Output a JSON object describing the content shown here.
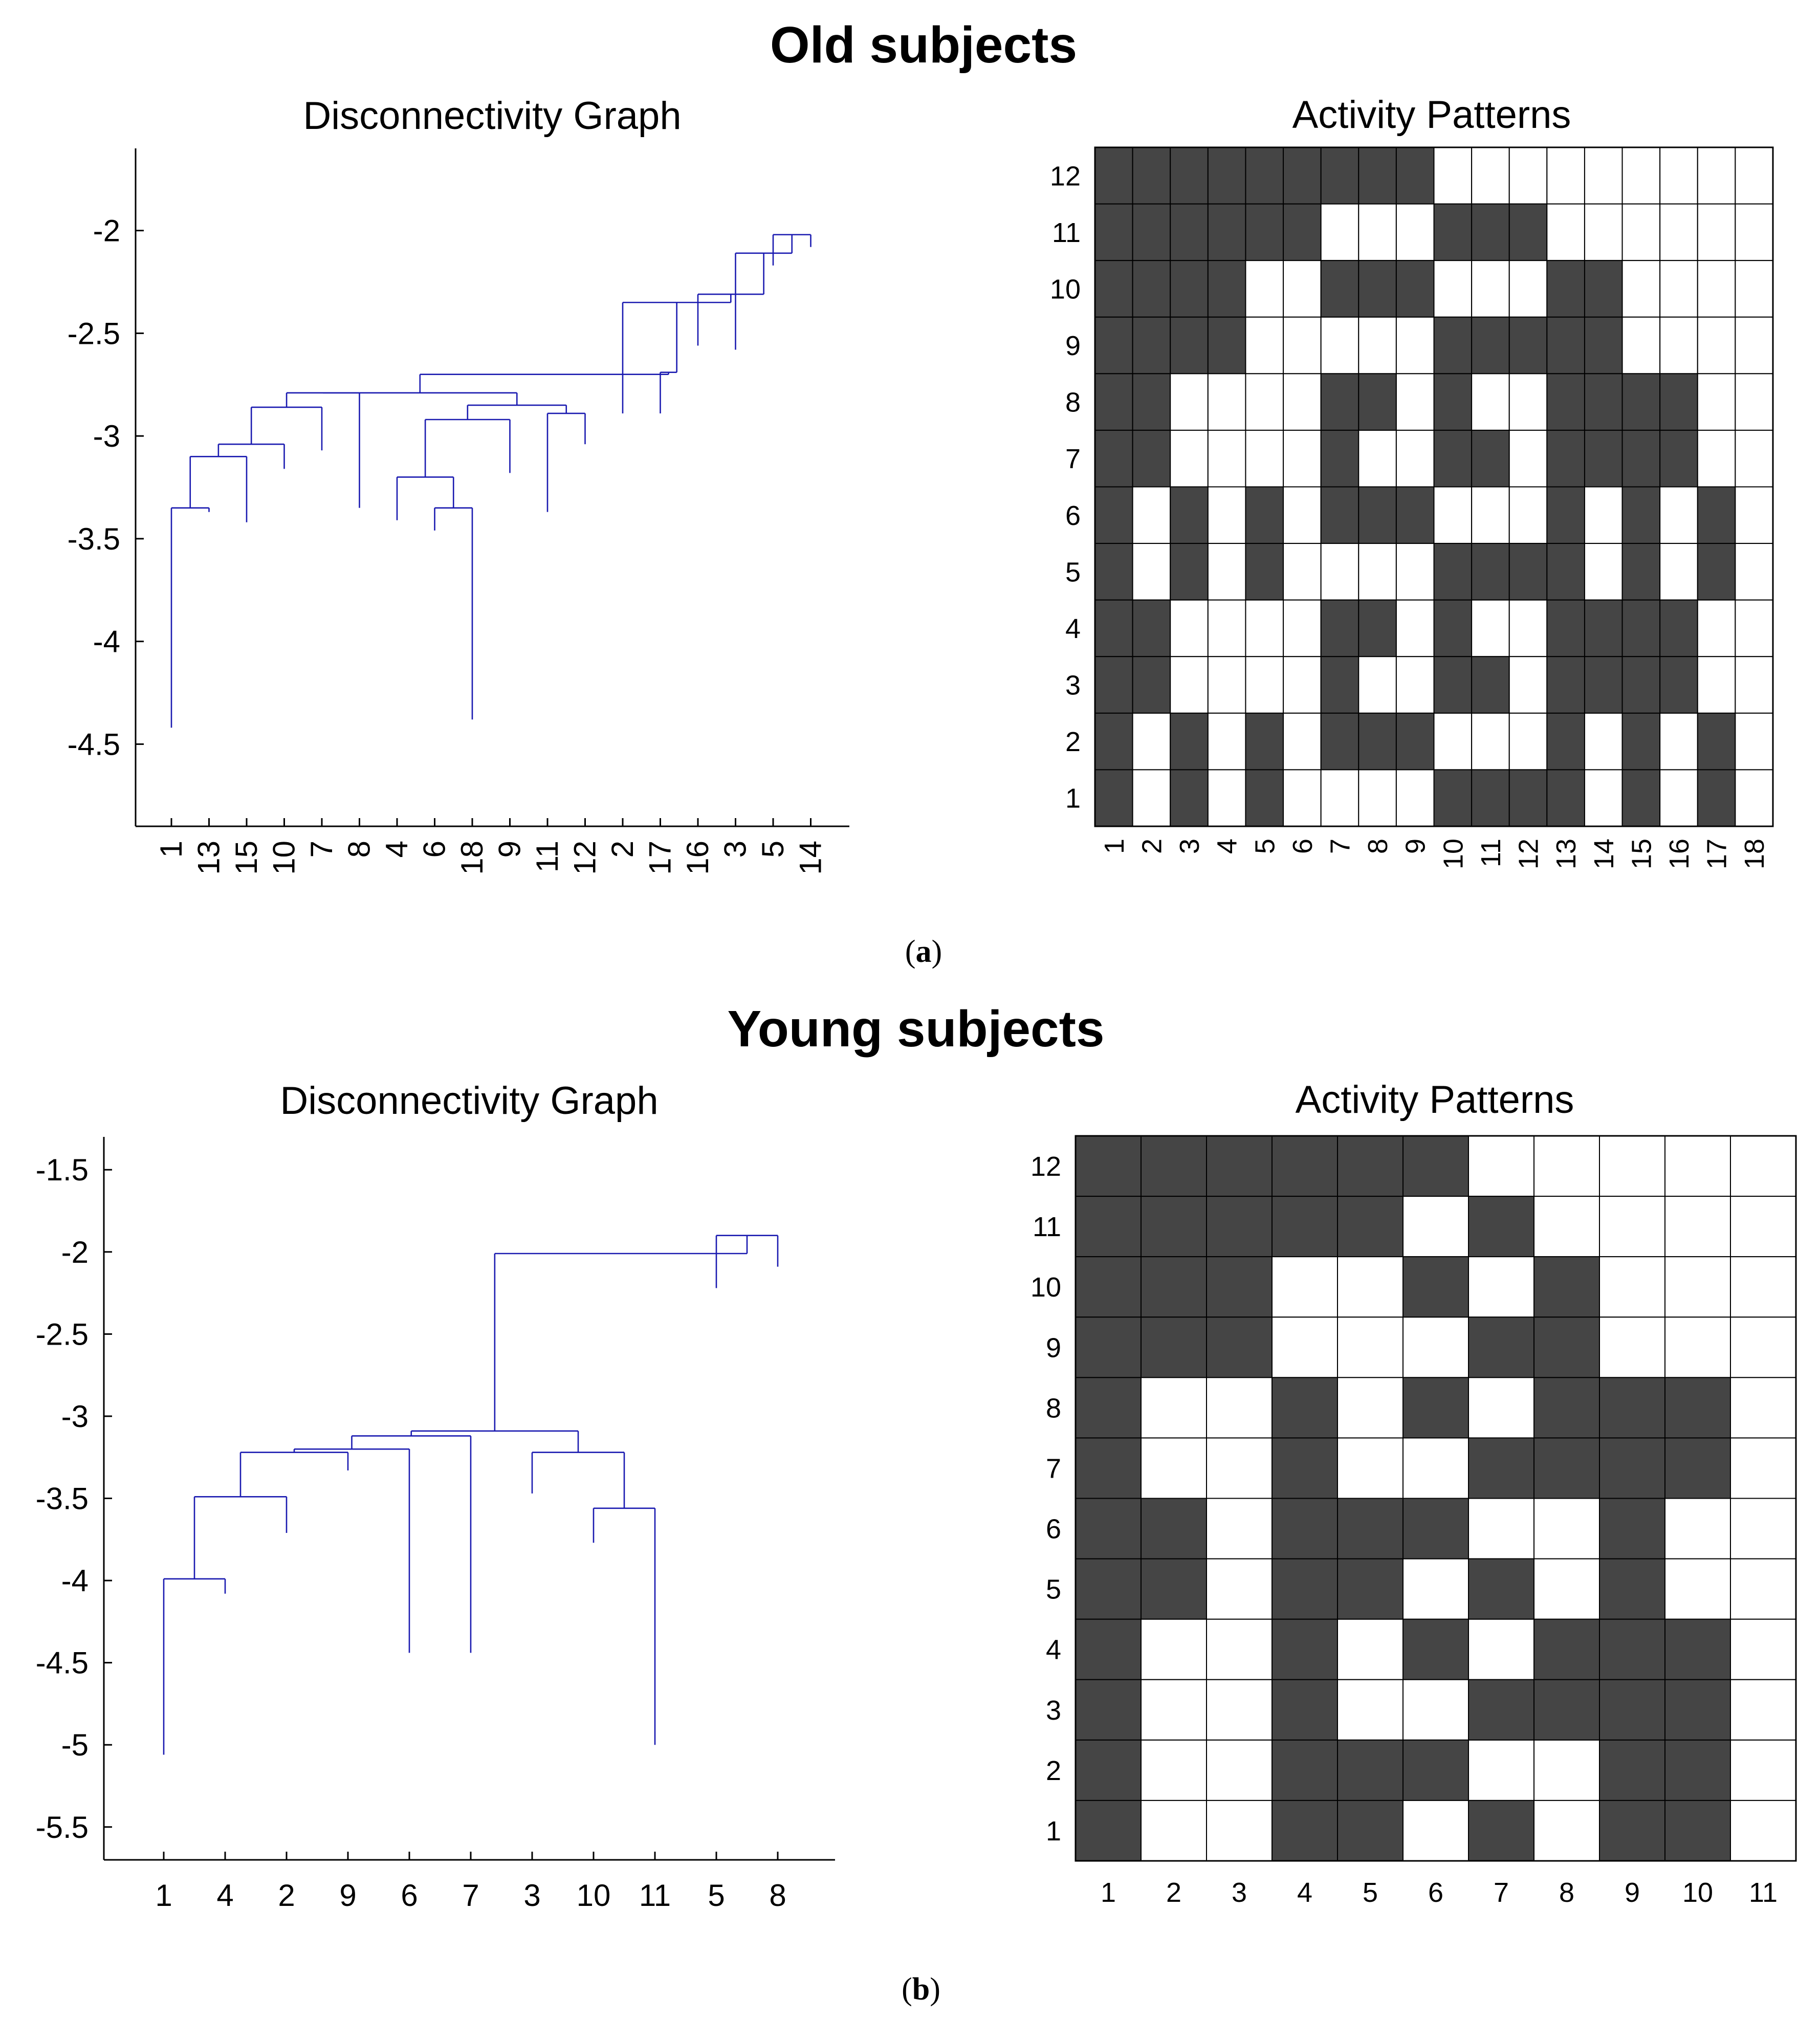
{
  "figure": {
    "panel_a_title": "Old subjects",
    "panel_b_title": "Young subjects",
    "caption_a": {
      "open": "(",
      "letter": "a",
      "close": ")"
    },
    "caption_b": {
      "open": "(",
      "letter": "b",
      "close": ")"
    }
  },
  "chart_data": [
    {
      "id": "old-dendrogram",
      "type": "dendrogram",
      "title": "Disconnectivity Graph",
      "xlabel": "",
      "ylabel": "",
      "ylim": [
        -4.9,
        -1.6
      ],
      "yticks": [
        -4.5,
        -4,
        -3.5,
        -3,
        -2.5,
        -2
      ],
      "ytick_labels": [
        "-4.5",
        "-4",
        "-3.5",
        "-3",
        "-2.5",
        "-2"
      ],
      "leaf_order": [
        "1",
        "13",
        "15",
        "10",
        "7",
        "8",
        "4",
        "6",
        "18",
        "9",
        "11",
        "12",
        "2",
        "17",
        "16",
        "3",
        "5",
        "14"
      ],
      "leaf_bottoms": [
        -4.42,
        -3.37,
        -3.42,
        -3.16,
        -3.07,
        -3.35,
        -3.41,
        -3.46,
        -4.38,
        -3.18,
        -3.37,
        -3.04,
        -2.89,
        -2.89,
        -2.56,
        -2.58,
        -2.17,
        -2.08
      ],
      "color": "#1a1ab0",
      "merges": [
        {
          "id": "n1",
          "left": "L0",
          "right": "L1",
          "height": -3.35
        },
        {
          "id": "n2",
          "left": "n1",
          "right": "L2",
          "height": -3.1
        },
        {
          "id": "n3",
          "left": "n2",
          "right": "L3",
          "height": -3.04
        },
        {
          "id": "n4",
          "left": "n3",
          "right": "L4",
          "height": -2.86
        },
        {
          "id": "n5",
          "left": "n4",
          "right": "L5",
          "height": -2.79
        },
        {
          "id": "n6",
          "left": "L7",
          "right": "L8",
          "height": -3.35
        },
        {
          "id": "n7",
          "left": "L6",
          "right": "n6",
          "height": -3.2
        },
        {
          "id": "n8",
          "left": "n7",
          "right": "L9",
          "height": -2.92
        },
        {
          "id": "n9",
          "left": "L10",
          "right": "L11",
          "height": -2.89
        },
        {
          "id": "n10",
          "left": "n8",
          "right": "n9",
          "height": -2.85
        },
        {
          "id": "n11",
          "left": "n5",
          "right": "n10",
          "height": -2.79
        },
        {
          "id": "n12",
          "left": "L16",
          "right": "L17",
          "height": -2.02
        },
        {
          "id": "n13",
          "left": "L15",
          "right": "n12",
          "height": -2.11
        },
        {
          "id": "n14",
          "left": "L14",
          "right": "n13",
          "height": -2.31
        },
        {
          "id": "n15",
          "left": "L12",
          "right": "n14",
          "height": -2.35
        },
        {
          "id": "n16",
          "left": "L13",
          "right": "n15",
          "height": -2.69
        },
        {
          "id": "n17",
          "left": "n11",
          "right": "n16",
          "height": -2.7
        }
      ]
    },
    {
      "id": "old-activity",
      "type": "heatmap",
      "title": "Activity Patterns",
      "x": [
        "1",
        "2",
        "3",
        "4",
        "5",
        "6",
        "7",
        "8",
        "9",
        "10",
        "11",
        "12",
        "13",
        "14",
        "15",
        "16",
        "17",
        "18"
      ],
      "y": [
        "1",
        "2",
        "3",
        "4",
        "5",
        "6",
        "7",
        "8",
        "9",
        "10",
        "11",
        "12"
      ],
      "legend": "1 = active (dark gray), 0 = inactive (white)",
      "rows_top_to_bottom": [
        [
          1,
          1,
          1,
          1,
          1,
          1,
          1,
          1,
          1,
          0,
          0,
          0,
          0,
          0,
          0,
          0,
          0,
          0
        ],
        [
          1,
          1,
          1,
          1,
          1,
          1,
          0,
          0,
          0,
          1,
          1,
          1,
          0,
          0,
          0,
          0,
          0,
          0
        ],
        [
          1,
          1,
          1,
          1,
          0,
          0,
          1,
          1,
          1,
          0,
          0,
          0,
          1,
          1,
          0,
          0,
          0,
          0
        ],
        [
          1,
          1,
          1,
          1,
          0,
          0,
          0,
          0,
          0,
          1,
          1,
          1,
          1,
          1,
          0,
          0,
          0,
          0
        ],
        [
          1,
          1,
          0,
          0,
          0,
          0,
          1,
          1,
          0,
          1,
          0,
          0,
          1,
          1,
          1,
          1,
          0,
          0
        ],
        [
          1,
          1,
          0,
          0,
          0,
          0,
          1,
          0,
          0,
          1,
          1,
          0,
          1,
          1,
          1,
          1,
          0,
          0
        ],
        [
          1,
          0,
          1,
          0,
          1,
          0,
          1,
          1,
          1,
          0,
          0,
          0,
          1,
          0,
          1,
          0,
          1,
          0
        ],
        [
          1,
          0,
          1,
          0,
          1,
          0,
          0,
          0,
          0,
          1,
          1,
          1,
          1,
          0,
          1,
          0,
          1,
          0
        ],
        [
          1,
          1,
          0,
          0,
          0,
          0,
          1,
          1,
          0,
          1,
          0,
          0,
          1,
          1,
          1,
          1,
          0,
          0
        ],
        [
          1,
          1,
          0,
          0,
          0,
          0,
          1,
          0,
          0,
          1,
          1,
          0,
          1,
          1,
          1,
          1,
          0,
          0
        ],
        [
          1,
          0,
          1,
          0,
          1,
          0,
          1,
          1,
          1,
          0,
          0,
          0,
          1,
          0,
          1,
          0,
          1,
          0
        ],
        [
          1,
          0,
          1,
          0,
          1,
          0,
          0,
          0,
          0,
          1,
          1,
          1,
          1,
          0,
          1,
          0,
          1,
          0
        ]
      ]
    },
    {
      "id": "young-dendrogram",
      "type": "dendrogram",
      "title": "Disconnectivity Graph",
      "xlabel": "",
      "ylabel": "",
      "ylim": [
        -5.7,
        -1.3
      ],
      "yticks": [
        -5.5,
        -5,
        -4.5,
        -4,
        -3.5,
        -3,
        -2.5,
        -2,
        -1.5
      ],
      "ytick_labels": [
        "-5.5",
        "-5",
        "-4.5",
        "-4",
        "-3.5",
        "-3",
        "-2.5",
        "-2",
        "-1.5"
      ],
      "leaf_order": [
        "1",
        "4",
        "2",
        "9",
        "6",
        "7",
        "3",
        "10",
        "11",
        "5",
        "8"
      ],
      "leaf_bottoms": [
        -5.06,
        -4.08,
        -3.71,
        -3.33,
        -4.44,
        -4.44,
        -3.47,
        -3.77,
        -5.0,
        -2.22,
        -2.09
      ],
      "color": "#1a1ab0",
      "merges": [
        {
          "id": "n1",
          "left": "L0",
          "right": "L1",
          "height": -3.99
        },
        {
          "id": "n2",
          "left": "n1",
          "right": "L2",
          "height": -3.49
        },
        {
          "id": "n3",
          "left": "n2",
          "right": "L3",
          "height": -3.22
        },
        {
          "id": "n4",
          "left": "n3",
          "right": "L4",
          "height": -3.2
        },
        {
          "id": "n5",
          "left": "n4",
          "right": "L5",
          "height": -3.12
        },
        {
          "id": "n6",
          "left": "L7",
          "right": "L8",
          "height": -3.56
        },
        {
          "id": "n7",
          "left": "L6",
          "right": "n6",
          "height": -3.22
        },
        {
          "id": "n8",
          "left": "n5",
          "right": "n7",
          "height": -3.09
        },
        {
          "id": "n9",
          "left": "L9",
          "right": "L10",
          "height": -1.9
        },
        {
          "id": "n10",
          "left": "n8",
          "right": "n9",
          "height": -2.01
        }
      ]
    },
    {
      "id": "young-activity",
      "type": "heatmap",
      "title": "Activity Patterns",
      "x": [
        "1",
        "2",
        "3",
        "4",
        "5",
        "6",
        "7",
        "8",
        "9",
        "10",
        "11"
      ],
      "y": [
        "1",
        "2",
        "3",
        "4",
        "5",
        "6",
        "7",
        "8",
        "9",
        "10",
        "11",
        "12"
      ],
      "legend": "1 = active (dark gray), 0 = inactive (white)",
      "rows_top_to_bottom": [
        [
          1,
          1,
          1,
          1,
          1,
          1,
          0,
          0,
          0,
          0,
          0
        ],
        [
          1,
          1,
          1,
          1,
          1,
          0,
          1,
          0,
          0,
          0,
          0
        ],
        [
          1,
          1,
          1,
          0,
          0,
          1,
          0,
          1,
          0,
          0,
          0
        ],
        [
          1,
          1,
          1,
          0,
          0,
          0,
          1,
          1,
          0,
          0,
          0
        ],
        [
          1,
          0,
          0,
          1,
          0,
          1,
          0,
          1,
          1,
          1,
          0
        ],
        [
          1,
          0,
          0,
          1,
          0,
          0,
          1,
          1,
          1,
          1,
          0
        ],
        [
          1,
          1,
          0,
          1,
          1,
          1,
          0,
          0,
          1,
          0,
          0
        ],
        [
          1,
          1,
          0,
          1,
          1,
          0,
          1,
          0,
          1,
          0,
          0
        ],
        [
          1,
          0,
          0,
          1,
          0,
          1,
          0,
          1,
          1,
          1,
          0
        ],
        [
          1,
          0,
          0,
          1,
          0,
          0,
          1,
          1,
          1,
          1,
          0
        ],
        [
          1,
          0,
          0,
          1,
          1,
          1,
          0,
          0,
          1,
          1,
          0
        ],
        [
          1,
          0,
          0,
          1,
          1,
          0,
          1,
          0,
          1,
          1,
          0
        ]
      ]
    }
  ],
  "colors": {
    "active": "#454545",
    "inactive": "#ffffff",
    "grid": "#000000",
    "dendro": "#1a1ab0"
  }
}
